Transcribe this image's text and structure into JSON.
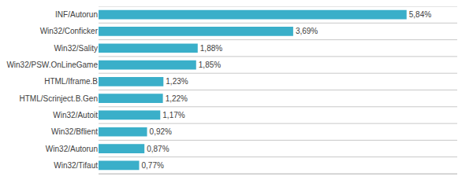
{
  "chart_data": {
    "type": "bar",
    "orientation": "horizontal",
    "categories": [
      "Win32/Tifaut",
      "Win32/Autorun",
      "Win32/Bflient",
      "Win32/Autoit",
      "HTML/Scrinject.B.Gen",
      "HTML/Iframe.B",
      "Win32/PSW.OnLineGame",
      "Win32/Sality",
      "Win32/Conficker",
      "INF/Autorun"
    ],
    "values": [
      0.77,
      0.87,
      0.92,
      1.17,
      1.22,
      1.23,
      1.85,
      1.88,
      3.69,
      5.84
    ],
    "value_labels": [
      "0,77%",
      "0,87%",
      "0,92%",
      "1,17%",
      "1,22%",
      "1,23%",
      "1,85%",
      "1,88%",
      "3,69%",
      "5,84%"
    ],
    "data_labels": true,
    "color": "#3aafc9",
    "xlim": [
      0,
      6.8
    ],
    "tick_labels": "y",
    "grid": true
  }
}
